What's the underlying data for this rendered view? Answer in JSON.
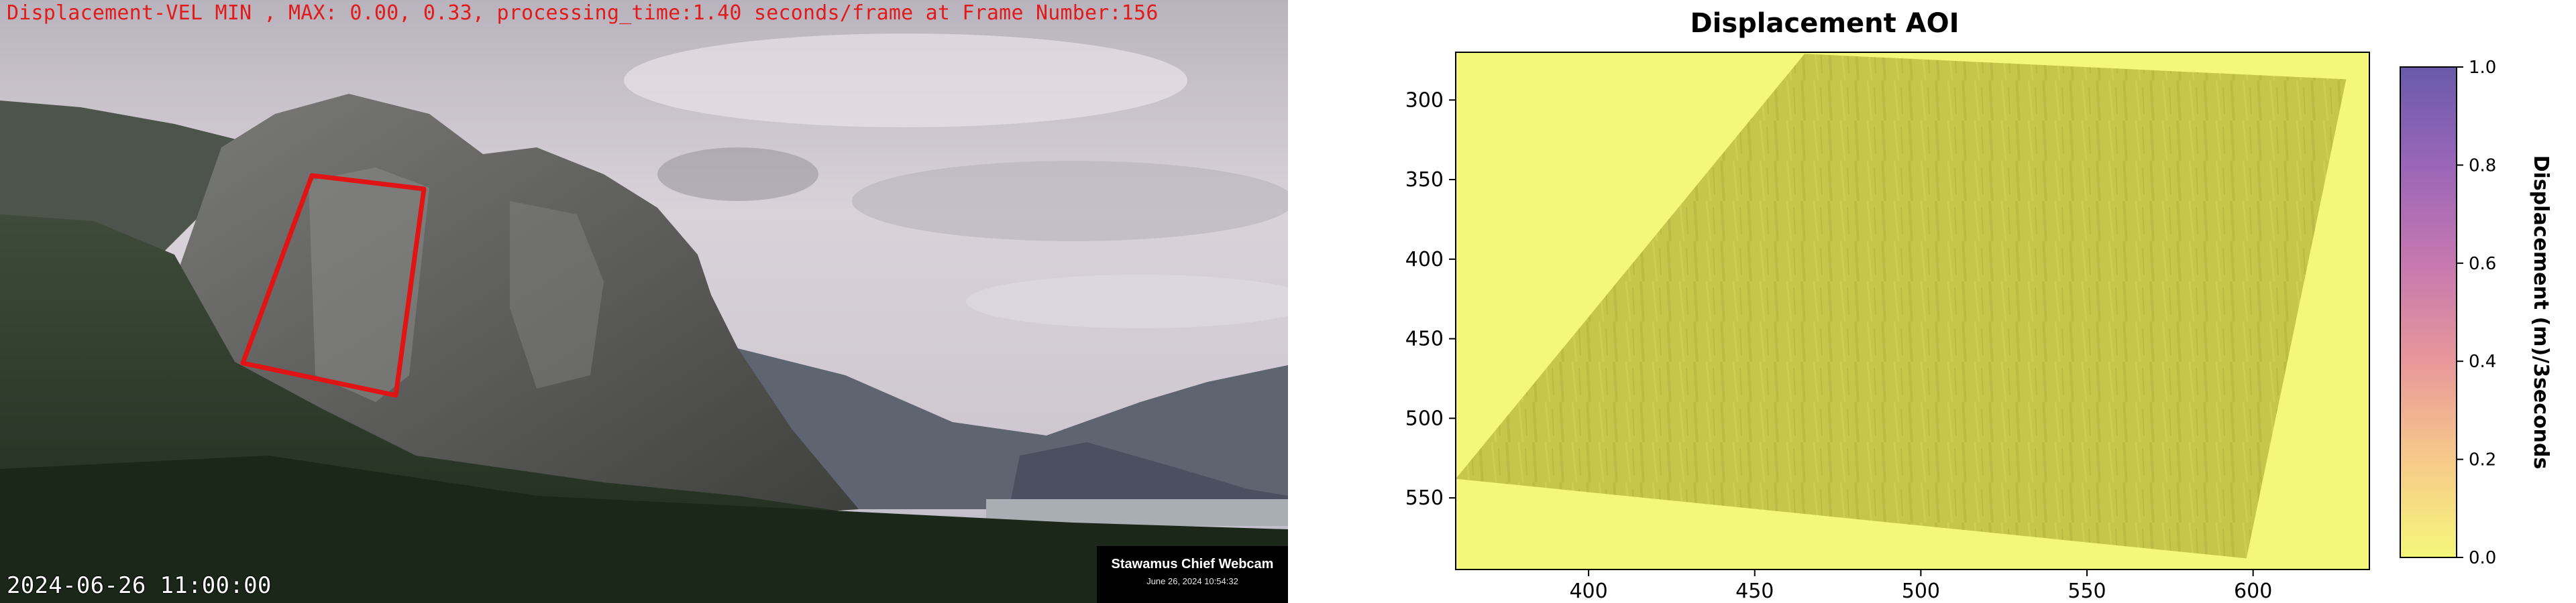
{
  "webcam": {
    "overlay_text": "Displacement-VEL MIN , MAX: 0.00, 0.33, processing_time:1.40 seconds/frame at Frame Number:156",
    "timestamp": "2024-06-26 11:00:00",
    "badge_title": "Stawamus Chief Webcam",
    "badge_date": "June 26, 2024 10:54:32",
    "roi_color": "#e01414"
  },
  "chart_data": {
    "type": "heatmap",
    "title": "Displacement AOI",
    "xlabel": "",
    "ylabel": "",
    "xlim": [
      360,
      635
    ],
    "ylim": [
      595,
      270
    ],
    "x_ticks": [
      "400",
      "450",
      "500",
      "550",
      "600"
    ],
    "y_ticks": [
      "300",
      "350",
      "400",
      "450",
      "500",
      "550"
    ],
    "aoi_polygon": [
      [
        465,
        271
      ],
      [
        628,
        287
      ],
      [
        598,
        588
      ],
      [
        360,
        538
      ]
    ],
    "colorbar": {
      "label": "Displacement (m)/3seconds",
      "range": [
        0.0,
        1.0
      ],
      "ticks": [
        "0.0",
        "0.2",
        "0.4",
        "0.6",
        "0.8",
        "1.0"
      ],
      "colors": [
        "#f5f77a",
        "#f7c98a",
        "#e8979a",
        "#c678b0",
        "#9a66b8",
        "#6a5aab"
      ]
    },
    "background_value": 0.0,
    "field_color": "#c8c84a",
    "background_color": "#f3f77a"
  }
}
